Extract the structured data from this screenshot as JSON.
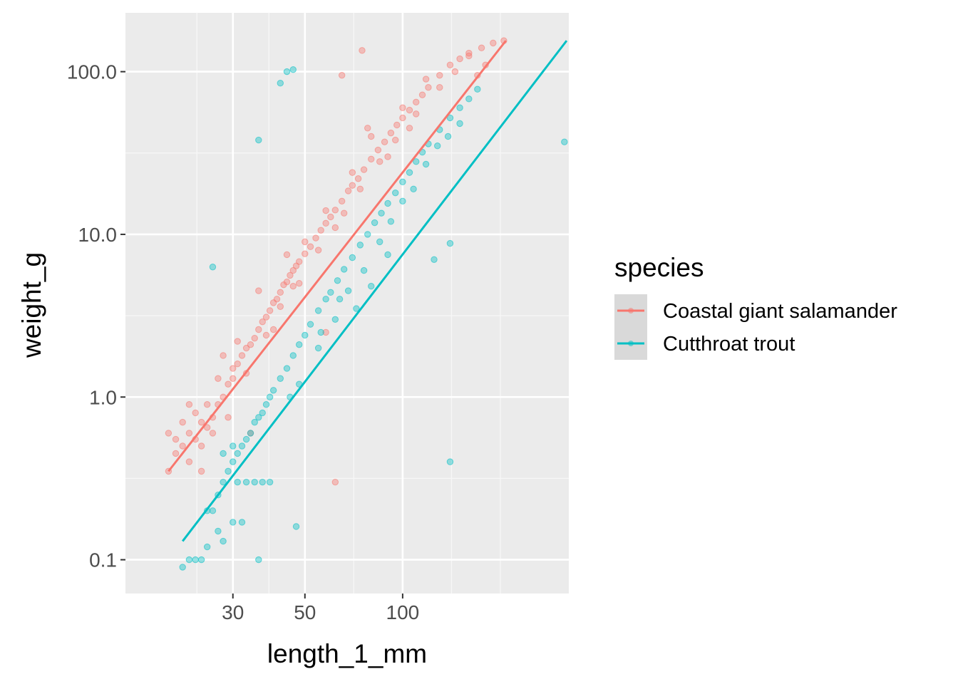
{
  "chart_data": {
    "type": "scatter",
    "xlabel": "length_1_mm",
    "ylabel": "weight_g",
    "x_scale": "log10",
    "y_scale": "log10",
    "xlim": [
      14,
      325
    ],
    "ylim": [
      0.062,
      230
    ],
    "x_ticks": [
      30,
      50,
      100
    ],
    "x_tick_labels": [
      "30",
      "50",
      "100"
    ],
    "y_ticks": [
      0.1,
      1,
      10,
      100
    ],
    "y_tick_labels": [
      "0.1",
      "1.0",
      "10.0",
      "100.0"
    ],
    "grid": true,
    "background": "#ebebeb",
    "legend": {
      "title": "species",
      "position": "right",
      "entries": [
        "Coastal giant salamander",
        "Cutthroat trout"
      ]
    },
    "series": [
      {
        "name": "Coastal giant salamander",
        "color": "#f8766d",
        "trend_line": {
          "x": [
            19,
            208
          ],
          "y": [
            0.35,
            155
          ]
        },
        "points": [
          [
            19,
            0.35
          ],
          [
            19,
            0.6
          ],
          [
            20,
            0.45
          ],
          [
            20,
            0.55
          ],
          [
            21,
            0.5
          ],
          [
            21,
            0.7
          ],
          [
            22,
            0.4
          ],
          [
            22,
            0.6
          ],
          [
            23,
            0.55
          ],
          [
            23,
            0.8
          ],
          [
            24,
            0.5
          ],
          [
            24,
            0.7
          ],
          [
            25,
            0.65
          ],
          [
            25,
            0.9
          ],
          [
            26,
            0.75
          ],
          [
            27,
            0.9
          ],
          [
            27,
            1.3
          ],
          [
            28,
            1.0
          ],
          [
            29,
            1.2
          ],
          [
            30,
            1.3
          ],
          [
            30,
            1.5
          ],
          [
            31,
            1.6
          ],
          [
            32,
            1.8
          ],
          [
            33,
            2.0
          ],
          [
            34,
            2.1
          ],
          [
            35,
            2.3
          ],
          [
            36,
            2.6
          ],
          [
            37,
            2.9
          ],
          [
            38,
            3.1
          ],
          [
            39,
            3.4
          ],
          [
            40,
            3.8
          ],
          [
            41,
            4.0
          ],
          [
            42,
            4.4
          ],
          [
            43,
            4.9
          ],
          [
            44,
            5.1
          ],
          [
            45,
            5.6
          ],
          [
            46,
            6.0
          ],
          [
            47,
            6.4
          ],
          [
            48,
            6.8
          ],
          [
            50,
            7.6
          ],
          [
            52,
            8.4
          ],
          [
            54,
            9.5
          ],
          [
            56,
            10.6
          ],
          [
            58,
            11.7
          ],
          [
            60,
            12.8
          ],
          [
            62,
            14.1
          ],
          [
            65,
            16.0
          ],
          [
            68,
            18.5
          ],
          [
            70,
            20.0
          ],
          [
            73,
            22.0
          ],
          [
            76,
            25.0
          ],
          [
            80,
            29.0
          ],
          [
            84,
            33.0
          ],
          [
            88,
            37.0
          ],
          [
            92,
            42.0
          ],
          [
            96,
            47.0
          ],
          [
            100,
            52.0
          ],
          [
            105,
            58.0
          ],
          [
            110,
            65.0
          ],
          [
            115,
            72.0
          ],
          [
            120,
            80.0
          ],
          [
            130,
            95.0
          ],
          [
            140,
            110.0
          ],
          [
            150,
            120.0
          ],
          [
            160,
            130.0
          ],
          [
            175,
            140.0
          ],
          [
            190,
            150.0
          ],
          [
            205,
            155.0
          ],
          [
            28,
            1.8
          ],
          [
            26,
            0.6
          ],
          [
            33,
            1.4
          ],
          [
            38,
            2.4
          ],
          [
            42,
            3.6
          ],
          [
            46,
            4.8
          ],
          [
            50,
            9.0
          ],
          [
            55,
            8.0
          ],
          [
            62,
            11.0
          ],
          [
            70,
            24.0
          ],
          [
            80,
            40.0
          ],
          [
            90,
            30.0
          ],
          [
            100,
            60.0
          ],
          [
            110,
            55.0
          ],
          [
            118,
            90.0
          ],
          [
            130,
            80.0
          ],
          [
            145,
            100.0
          ],
          [
            160,
            125.0
          ],
          [
            170,
            95.0
          ],
          [
            180,
            110.0
          ],
          [
            36,
            4.5
          ],
          [
            44,
            7.5
          ],
          [
            40,
            2.6
          ],
          [
            48,
            5.0
          ],
          [
            58,
            14.0
          ],
          [
            66,
            13.5
          ],
          [
            74,
            19.0
          ],
          [
            85,
            28.0
          ],
          [
            95,
            38.0
          ],
          [
            105,
            45.0
          ],
          [
            75,
            135.0
          ],
          [
            65,
            95.0
          ],
          [
            78,
            45.0
          ],
          [
            58,
            2.5
          ],
          [
            62,
            0.3
          ],
          [
            34,
            0.6
          ],
          [
            24,
            0.35
          ],
          [
            22,
            0.9
          ],
          [
            29,
            0.75
          ],
          [
            31,
            2.2
          ]
        ]
      },
      {
        "name": "Cutthroat trout",
        "color": "#00bfc4",
        "trend_line": {
          "x": [
            21,
            320
          ],
          "y": [
            0.13,
            155
          ]
        },
        "points": [
          [
            21,
            0.09
          ],
          [
            22,
            0.1
          ],
          [
            23,
            0.1
          ],
          [
            24,
            0.1
          ],
          [
            25,
            0.12
          ],
          [
            25,
            0.2
          ],
          [
            26,
            0.2
          ],
          [
            27,
            0.25
          ],
          [
            27,
            0.15
          ],
          [
            28,
            0.3
          ],
          [
            28,
            0.45
          ],
          [
            29,
            0.35
          ],
          [
            30,
            0.4
          ],
          [
            30,
            0.5
          ],
          [
            31,
            0.45
          ],
          [
            32,
            0.5
          ],
          [
            33,
            0.55
          ],
          [
            34,
            0.6
          ],
          [
            35,
            0.7
          ],
          [
            36,
            0.75
          ],
          [
            37,
            0.8
          ],
          [
            38,
            0.9
          ],
          [
            39,
            1.0
          ],
          [
            40,
            1.1
          ],
          [
            42,
            1.3
          ],
          [
            44,
            1.5
          ],
          [
            46,
            1.8
          ],
          [
            48,
            2.1
          ],
          [
            50,
            2.4
          ],
          [
            52,
            2.8
          ],
          [
            55,
            3.4
          ],
          [
            58,
            4.0
          ],
          [
            60,
            4.4
          ],
          [
            63,
            5.2
          ],
          [
            66,
            6.1
          ],
          [
            70,
            7.2
          ],
          [
            74,
            8.6
          ],
          [
            78,
            10.0
          ],
          [
            82,
            11.8
          ],
          [
            86,
            13.5
          ],
          [
            90,
            15.5
          ],
          [
            95,
            18.0
          ],
          [
            100,
            21.0
          ],
          [
            105,
            24.0
          ],
          [
            110,
            28.0
          ],
          [
            115,
            32.0
          ],
          [
            120,
            36.0
          ],
          [
            130,
            44.0
          ],
          [
            140,
            52.0
          ],
          [
            150,
            60.0
          ],
          [
            160,
            68.0
          ],
          [
            170,
            78.0
          ],
          [
            31,
            0.3
          ],
          [
            33,
            0.3
          ],
          [
            35,
            0.3
          ],
          [
            37,
            0.3
          ],
          [
            39,
            0.3
          ],
          [
            30,
            0.17
          ],
          [
            32,
            0.17
          ],
          [
            28,
            0.13
          ],
          [
            45,
            1.0
          ],
          [
            48,
            1.2
          ],
          [
            55,
            2.0
          ],
          [
            62,
            3.0
          ],
          [
            68,
            4.5
          ],
          [
            72,
            3.5
          ],
          [
            76,
            6.0
          ],
          [
            85,
            9.0
          ],
          [
            92,
            12.0
          ],
          [
            100,
            16.0
          ],
          [
            108,
            19.0
          ],
          [
            118,
            27.0
          ],
          [
            128,
            35.0
          ],
          [
            138,
            40.0
          ],
          [
            150,
            48.0
          ],
          [
            125,
            7.0
          ],
          [
            140,
            8.8
          ],
          [
            140,
            0.4
          ],
          [
            315,
            37.0
          ],
          [
            47,
            0.16
          ],
          [
            36,
            0.1
          ],
          [
            26,
            6.3
          ],
          [
            36,
            38.0
          ],
          [
            42,
            85.0
          ],
          [
            44,
            100.0
          ],
          [
            46,
            103.0
          ],
          [
            56,
            2.5
          ],
          [
            64,
            4.0
          ],
          [
            80,
            4.8
          ],
          [
            90,
            7.5
          ]
        ]
      }
    ]
  }
}
